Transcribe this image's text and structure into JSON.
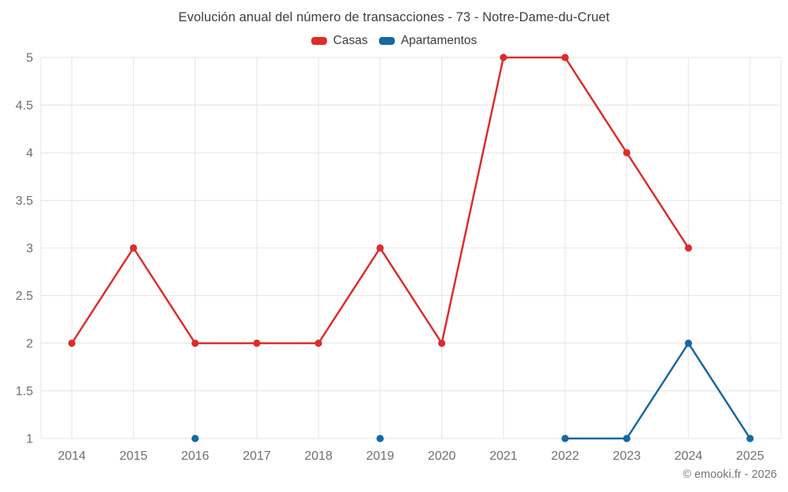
{
  "chart_data": {
    "type": "line",
    "title": "Evolución anual del número de transacciones - 73 - Notre-Dame-du-Cruet",
    "categories": [
      "2014",
      "2015",
      "2016",
      "2017",
      "2018",
      "2019",
      "2020",
      "2021",
      "2022",
      "2023",
      "2024",
      "2025"
    ],
    "series": [
      {
        "name": "Casas",
        "color": "#dd2c2c",
        "values": [
          2,
          3,
          2,
          2,
          2,
          3,
          2,
          5,
          5,
          4,
          3,
          null
        ]
      },
      {
        "name": "Apartamentos",
        "color": "#1668a0",
        "values": [
          null,
          null,
          1,
          null,
          null,
          1,
          null,
          null,
          1,
          1,
          2,
          1
        ]
      }
    ],
    "ylim": [
      1,
      5
    ],
    "ytick_step": 0.5,
    "yticks": [
      1,
      1.5,
      2,
      2.5,
      3,
      3.5,
      4,
      4.5,
      5
    ],
    "xlabel": "",
    "ylabel": "",
    "grid": true,
    "legend_position": "top"
  },
  "footer": {
    "copyright": "© emooki.fr - 2026"
  },
  "theme": {
    "grid_color": "#e4e4e4",
    "axis_label_color": "#6f6f6f",
    "title_color": "#3d3d3d",
    "background": "#ffffff"
  }
}
